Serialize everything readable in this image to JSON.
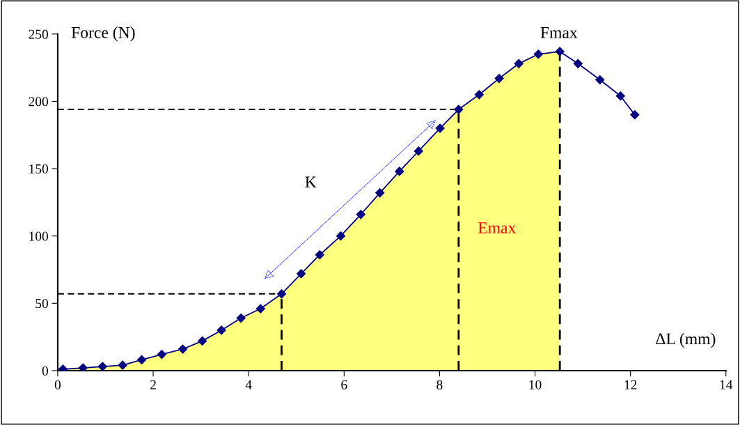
{
  "chart_data": {
    "type": "line",
    "xlabel": "ΔL (mm)",
    "ylabel": "Force (N)",
    "xlim": [
      0,
      14
    ],
    "ylim": [
      0,
      250
    ],
    "xticks": [
      0,
      2,
      4,
      6,
      8,
      10,
      12,
      14
    ],
    "yticks": [
      0,
      50,
      100,
      150,
      200,
      250
    ],
    "grid": false,
    "legend": false,
    "annotations": [
      "Fmax",
      "K",
      "Emax"
    ],
    "series": [
      {
        "type": "area",
        "color": "#ffff80",
        "x": [
          0.11,
          0.53,
          0.94,
          1.36,
          1.76,
          2.18,
          2.62,
          3.03,
          3.43,
          3.84,
          4.25,
          4.69,
          5.1,
          5.49,
          5.93,
          6.35,
          6.75,
          7.16,
          7.56,
          8.01,
          8.4,
          8.83,
          9.25,
          9.66,
          10.07,
          10.52
        ],
        "values": [
          1,
          2,
          3,
          4,
          8,
          12,
          16,
          22,
          30,
          39,
          46,
          57,
          72,
          86,
          100,
          116,
          132,
          148,
          163,
          180,
          194,
          205,
          217,
          228,
          235,
          237
        ]
      },
      {
        "color": "#000080",
        "marker": "diamond",
        "line_style": "solid",
        "x": [
          0.11,
          0.53,
          0.94,
          1.36,
          1.76,
          2.18,
          2.62,
          3.03,
          3.43,
          3.84,
          4.25,
          4.69,
          5.1,
          5.49,
          5.93,
          6.35,
          6.75,
          7.16,
          7.56,
          8.01,
          8.4,
          8.83,
          9.25,
          9.66,
          10.07,
          10.52,
          10.9,
          11.36,
          11.79,
          12.09
        ],
        "values": [
          1,
          2,
          3,
          4,
          8,
          12,
          16,
          22,
          30,
          39,
          46,
          57,
          72,
          86,
          100,
          116,
          132,
          148,
          163,
          180,
          194,
          205,
          217,
          228,
          235,
          237,
          228,
          216,
          204,
          190
        ]
      },
      {
        "color": "#000000",
        "marker": "none",
        "line_style": "dashed",
        "x": [
          0,
          4.69
        ],
        "values": [
          57,
          57
        ]
      },
      {
        "color": "#000000",
        "marker": "none",
        "line_style": "dashed",
        "x": [
          0,
          8.4
        ],
        "values": [
          194,
          194
        ]
      },
      {
        "color": "#000000",
        "marker": "none",
        "line_style": "dashed",
        "x": [
          4.69,
          4.69
        ],
        "values": [
          0,
          57
        ]
      },
      {
        "color": "#000000",
        "marker": "none",
        "line_style": "dashed",
        "x": [
          8.4,
          8.4
        ],
        "values": [
          0,
          194
        ]
      },
      {
        "color": "#000000",
        "marker": "none",
        "line_style": "dashed",
        "x": [
          10.52,
          10.52
        ],
        "values": [
          0,
          237
        ]
      }
    ]
  }
}
